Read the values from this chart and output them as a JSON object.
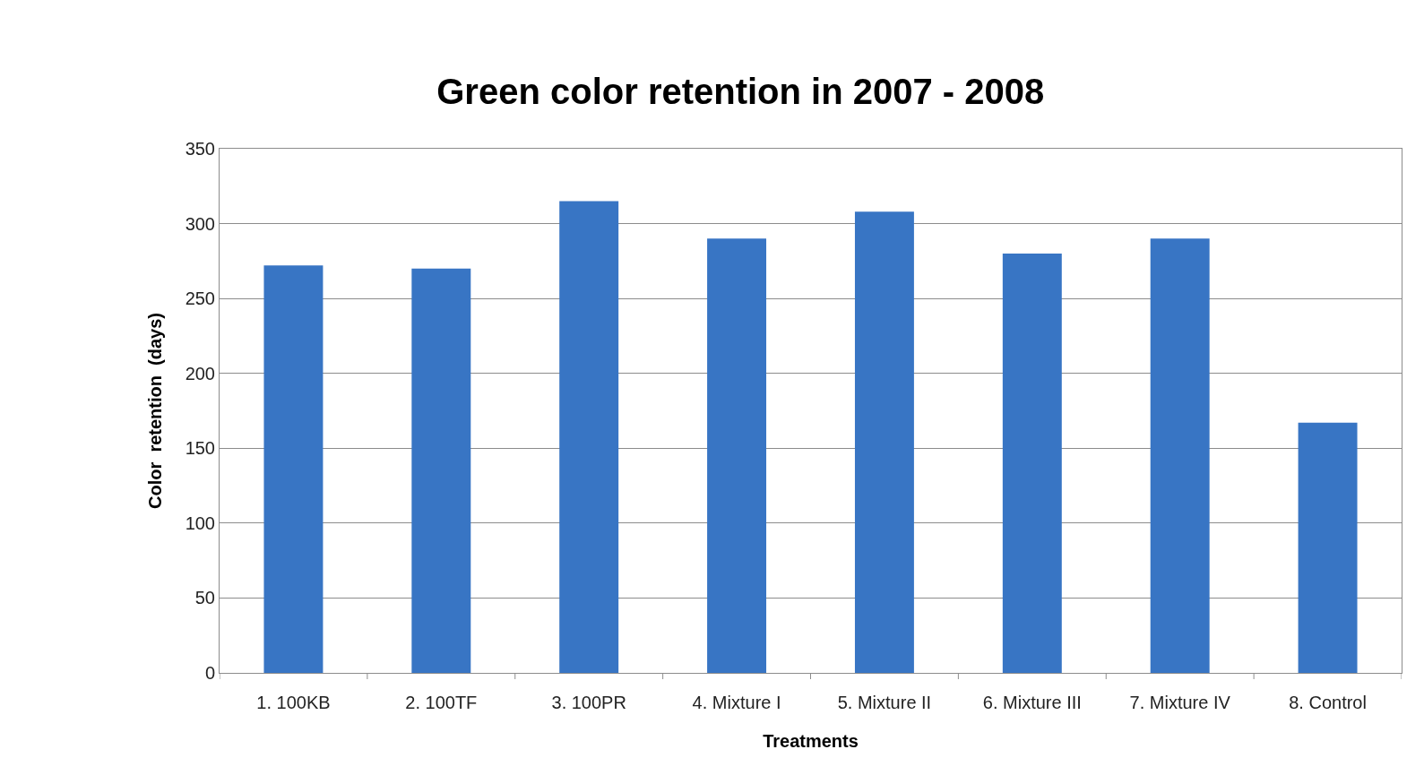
{
  "chart_data": {
    "type": "bar",
    "title": "Green color retention in 2007 - 2008",
    "xlabel": "Treatments",
    "ylabel": "Color  retention  (days)",
    "categories": [
      "1. 100KB",
      "2. 100TF",
      "3. 100PR",
      "4. Mixture I",
      "5. Mixture II",
      "6. Mixture III",
      "7. Mixture IV",
      "8. Control"
    ],
    "values": [
      272,
      270,
      315,
      290,
      308,
      280,
      290,
      167
    ],
    "color": "#3875c4",
    "ylim": [
      0,
      350
    ],
    "yticks": [
      0,
      50,
      100,
      150,
      200,
      250,
      300,
      350
    ],
    "grid": "y"
  }
}
